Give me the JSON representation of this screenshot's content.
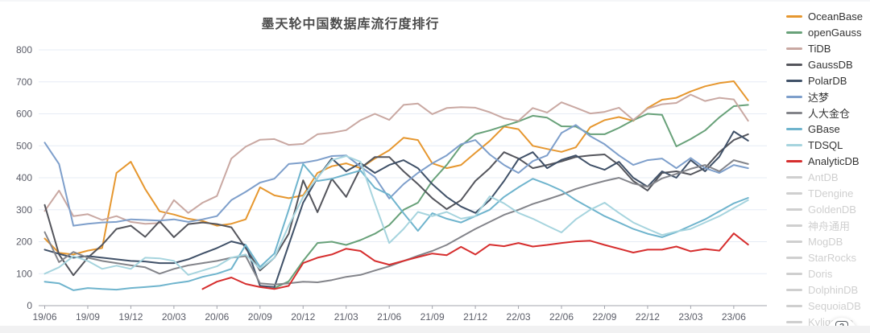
{
  "page": {
    "title": "墨天轮中国数据库流行度排行",
    "help_icon": "question-mark-help-icon"
  },
  "axis_style": {
    "grid_color": "#e6ecf5",
    "axis_line_color": "#a3a5ad",
    "tick_label_color": "#5b5d68"
  },
  "legend_disabled_color": "#cfcfcf",
  "chart_data": {
    "type": "line",
    "title": "墨天轮中国数据库流行度排行",
    "xlabel": "",
    "ylabel": "",
    "ylim": [
      0,
      800
    ],
    "y_ticks": [
      0,
      100,
      200,
      300,
      400,
      500,
      600,
      700,
      800
    ],
    "grid": true,
    "legend_position": "right",
    "x": [
      "19/06",
      "19/07",
      "19/08",
      "19/09",
      "19/10",
      "19/11",
      "19/12",
      "20/01",
      "20/02",
      "20/03",
      "20/04",
      "20/05",
      "20/06",
      "20/07",
      "20/08",
      "20/09",
      "20/10",
      "20/11",
      "20/12",
      "21/01",
      "21/02",
      "21/03",
      "21/04",
      "21/05",
      "21/06",
      "21/07",
      "21/08",
      "21/09",
      "21/10",
      "21/11",
      "21/12",
      "22/01",
      "22/02",
      "22/03",
      "22/04",
      "22/05",
      "22/06",
      "22/07",
      "22/08",
      "22/09",
      "22/10",
      "22/11",
      "22/12",
      "23/01",
      "23/02",
      "23/03",
      "23/04",
      "23/05",
      "23/06",
      "23/07"
    ],
    "x_tick_labels": [
      "19/06",
      "19/09",
      "19/12",
      "20/03",
      "20/06",
      "20/09",
      "20/12",
      "21/03",
      "21/06",
      "21/09",
      "21/12",
      "22/03",
      "22/06",
      "22/09",
      "22/12",
      "23/03",
      "23/06"
    ],
    "series": [
      {
        "name": "OceanBase",
        "color": "#e6972f",
        "enabled": true,
        "values": [
          210,
          165,
          160,
          172,
          180,
          415,
          450,
          365,
          295,
          285,
          272,
          265,
          250,
          256,
          270,
          370,
          345,
          336,
          345,
          415,
          436,
          445,
          430,
          460,
          486,
          525,
          518,
          445,
          430,
          440,
          478,
          515,
          560,
          552,
          500,
          490,
          481,
          495,
          558,
          580,
          590,
          578,
          618,
          644,
          650,
          670,
          686,
          696,
          702,
          642
        ]
      },
      {
        "name": "openGauss",
        "color": "#68a179",
        "enabled": true,
        "values": [
          null,
          null,
          null,
          null,
          null,
          null,
          null,
          null,
          null,
          null,
          null,
          null,
          null,
          null,
          null,
          null,
          55,
          76,
          140,
          196,
          200,
          190,
          205,
          225,
          252,
          300,
          322,
          390,
          440,
          500,
          536,
          548,
          562,
          576,
          594,
          588,
          561,
          560,
          536,
          536,
          556,
          580,
          600,
          597,
          498,
          521,
          548,
          589,
          624,
          628
        ]
      },
      {
        "name": "TiDB",
        "color": "#c9a8a2",
        "enabled": true,
        "values": [
          296,
          360,
          280,
          286,
          268,
          280,
          262,
          256,
          258,
          330,
          290,
          322,
          343,
          460,
          497,
          519,
          521,
          503,
          506,
          536,
          541,
          549,
          580,
          600,
          581,
          628,
          632,
          599,
          618,
          621,
          619,
          605,
          586,
          578,
          618,
          604,
          636,
          619,
          601,
          606,
          619,
          581,
          616,
          630,
          634,
          660,
          640,
          650,
          645,
          578
        ]
      },
      {
        "name": "GaussDB",
        "color": "#54555c",
        "enabled": true,
        "values": [
          315,
          160,
          95,
          150,
          190,
          240,
          250,
          215,
          264,
          214,
          255,
          260,
          255,
          245,
          180,
          110,
          150,
          225,
          392,
          292,
          397,
          340,
          430,
          465,
          465,
          420,
          380,
          336,
          302,
          330,
          390,
          430,
          480,
          460,
          430,
          440,
          451,
          465,
          470,
          473,
          440,
          390,
          360,
          415,
          420,
          410,
          430,
          480,
          518,
          536
        ]
      },
      {
        "name": "PolarDB",
        "color": "#405168",
        "enabled": true,
        "values": [
          175,
          162,
          150,
          155,
          150,
          145,
          140,
          138,
          133,
          133,
          145,
          163,
          180,
          201,
          190,
          62,
          58,
          190,
          322,
          400,
          460,
          420,
          446,
          415,
          440,
          455,
          430,
          380,
          340,
          310,
          290,
          330,
          390,
          458,
          480,
          430,
          456,
          470,
          440,
          425,
          450,
          400,
          372,
          420,
          400,
          455,
          420,
          466,
          545,
          516
        ]
      },
      {
        "name": "达梦",
        "color": "#7e9fcb",
        "enabled": true,
        "values": [
          510,
          443,
          250,
          256,
          260,
          262,
          270,
          268,
          266,
          270,
          262,
          270,
          280,
          330,
          356,
          385,
          397,
          443,
          447,
          455,
          468,
          470,
          435,
          402,
          335,
          380,
          415,
          445,
          470,
          505,
          518,
          473,
          440,
          415,
          452,
          470,
          540,
          565,
          530,
          505,
          470,
          440,
          455,
          460,
          430,
          462,
          430,
          415,
          440,
          430
        ]
      },
      {
        "name": "人大金仓",
        "color": "#83848a",
        "enabled": true,
        "values": [
          230,
          136,
          168,
          150,
          140,
          133,
          126,
          120,
          100,
          115,
          126,
          133,
          140,
          150,
          155,
          70,
          66,
          70,
          75,
          73,
          80,
          90,
          96,
          110,
          123,
          140,
          156,
          171,
          190,
          215,
          240,
          262,
          284,
          300,
          318,
          332,
          347,
          365,
          378,
          390,
          400,
          382,
          372,
          398,
          412,
          428,
          440,
          420,
          455,
          443
        ]
      },
      {
        "name": "GBase",
        "color": "#6fb4cd",
        "enabled": true,
        "values": [
          75,
          70,
          48,
          55,
          52,
          50,
          55,
          58,
          62,
          70,
          76,
          90,
          100,
          115,
          190,
          121,
          163,
          300,
          443,
          390,
          397,
          410,
          423,
          368,
          347,
          289,
          234,
          289,
          272,
          260,
          280,
          300,
          340,
          370,
          397,
          380,
          360,
          330,
          305,
          280,
          260,
          240,
          225,
          214,
          230,
          250,
          270,
          295,
          320,
          337
        ]
      },
      {
        "name": "TDSQL",
        "color": "#a6d4de",
        "enabled": true,
        "values": [
          100,
          120,
          155,
          140,
          115,
          125,
          115,
          150,
          148,
          140,
          96,
          110,
          123,
          150,
          160,
          115,
          150,
          250,
          340,
          400,
          455,
          468,
          450,
          320,
          196,
          240,
          293,
          280,
          293,
          272,
          280,
          342,
          320,
          290,
          272,
          250,
          229,
          270,
          300,
          322,
          290,
          260,
          240,
          221,
          232,
          240,
          260,
          280,
          305,
          330
        ]
      },
      {
        "name": "AnalyticDB",
        "color": "#d62e2e",
        "enabled": true,
        "values": [
          null,
          null,
          null,
          null,
          null,
          null,
          null,
          null,
          null,
          null,
          null,
          52,
          75,
          88,
          68,
          58,
          52,
          62,
          133,
          150,
          160,
          178,
          171,
          140,
          128,
          140,
          152,
          163,
          158,
          184,
          160,
          191,
          186,
          196,
          185,
          190,
          196,
          201,
          203,
          190,
          178,
          166,
          175,
          175,
          185,
          170,
          177,
          172,
          226,
          191
        ]
      },
      {
        "name": "AntDB",
        "enabled": false,
        "values": []
      },
      {
        "name": "TDengine",
        "enabled": false,
        "values": []
      },
      {
        "name": "GoldenDB",
        "enabled": false,
        "values": []
      },
      {
        "name": "神舟通用",
        "enabled": false,
        "values": []
      },
      {
        "name": "MogDB",
        "enabled": false,
        "values": []
      },
      {
        "name": "StarRocks",
        "enabled": false,
        "values": []
      },
      {
        "name": "Doris",
        "enabled": false,
        "values": []
      },
      {
        "name": "DolphinDB",
        "enabled": false,
        "values": []
      },
      {
        "name": "SequoiaDB",
        "enabled": false,
        "values": []
      },
      {
        "name": "Kyligence",
        "enabled": false,
        "values": []
      }
    ]
  }
}
